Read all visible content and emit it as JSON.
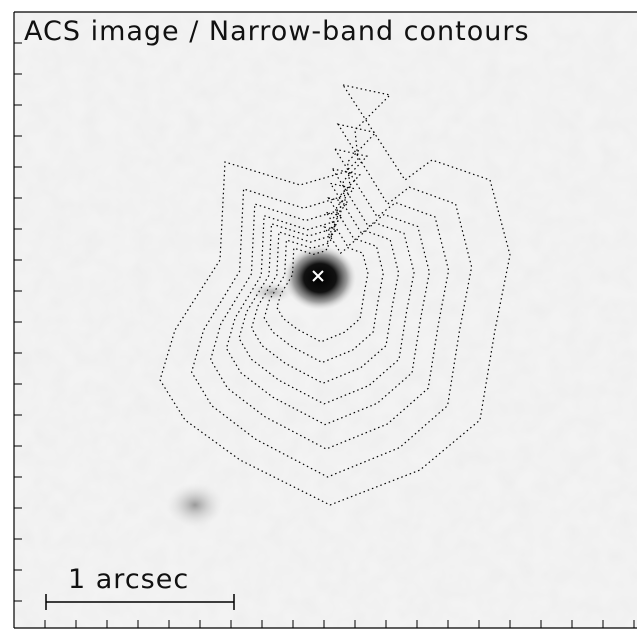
{
  "figure": {
    "title": "ACS image / Narrow-band contours",
    "scale_bar_label": "1 arcsec"
  }
}
